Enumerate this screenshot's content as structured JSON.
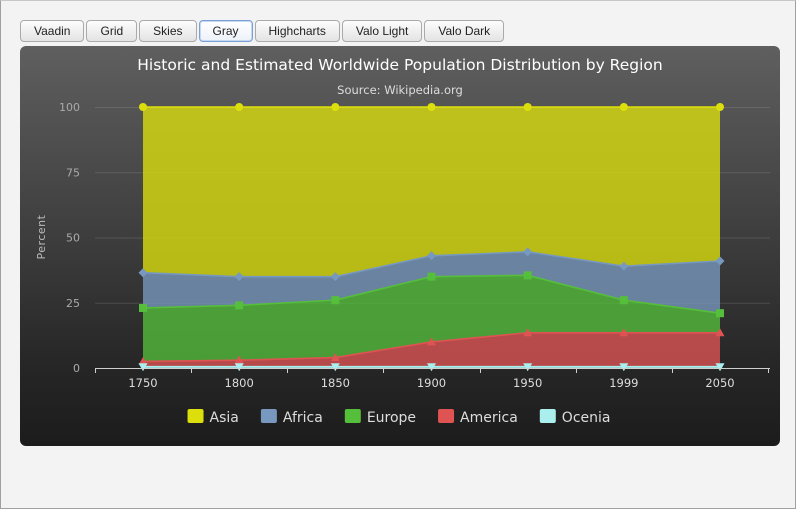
{
  "themes": {
    "buttons": [
      {
        "label": "Vaadin",
        "active": false
      },
      {
        "label": "Grid",
        "active": false
      },
      {
        "label": "Skies",
        "active": false
      },
      {
        "label": "Gray",
        "active": true
      },
      {
        "label": "Highcharts",
        "active": false
      },
      {
        "label": "Valo Light",
        "active": false
      },
      {
        "label": "Valo Dark",
        "active": false
      }
    ]
  },
  "chart_data": {
    "type": "area",
    "stacking": "percent",
    "title": "Historic and Estimated Worldwide Population Distribution by Region",
    "subtitle": "Source: Wikipedia.org",
    "xlabel": "",
    "ylabel": "Percent",
    "categories": [
      "1750",
      "1800",
      "1850",
      "1900",
      "1950",
      "1999",
      "2050"
    ],
    "yticks": [
      "0",
      "25",
      "50",
      "75",
      "100"
    ],
    "ylim": [
      0,
      100
    ],
    "grid": true,
    "legend_position": "bottom-center",
    "series": [
      {
        "name": "Asia",
        "color": "#dddf0d",
        "marker": "circle",
        "values": [
          63.5,
          65.0,
          65.0,
          57.0,
          55.5,
          61.0,
          59.0
        ]
      },
      {
        "name": "Africa",
        "color": "#7798bf",
        "marker": "diamond",
        "values": [
          13.5,
          11.0,
          9.0,
          8.0,
          9.0,
          13.0,
          20.0
        ]
      },
      {
        "name": "Europe",
        "color": "#55bf3b",
        "marker": "square",
        "values": [
          20.5,
          21.0,
          22.0,
          25.0,
          22.0,
          12.5,
          7.5
        ]
      },
      {
        "name": "America",
        "color": "#df5353",
        "marker": "triangle",
        "values": [
          2.0,
          2.5,
          3.5,
          9.5,
          13.0,
          13.0,
          13.0
        ]
      },
      {
        "name": "Ocenia",
        "color": "#aaeeee",
        "marker": "triangle-down",
        "values": [
          0.5,
          0.5,
          0.5,
          0.5,
          0.5,
          0.5,
          0.5
        ]
      }
    ]
  }
}
